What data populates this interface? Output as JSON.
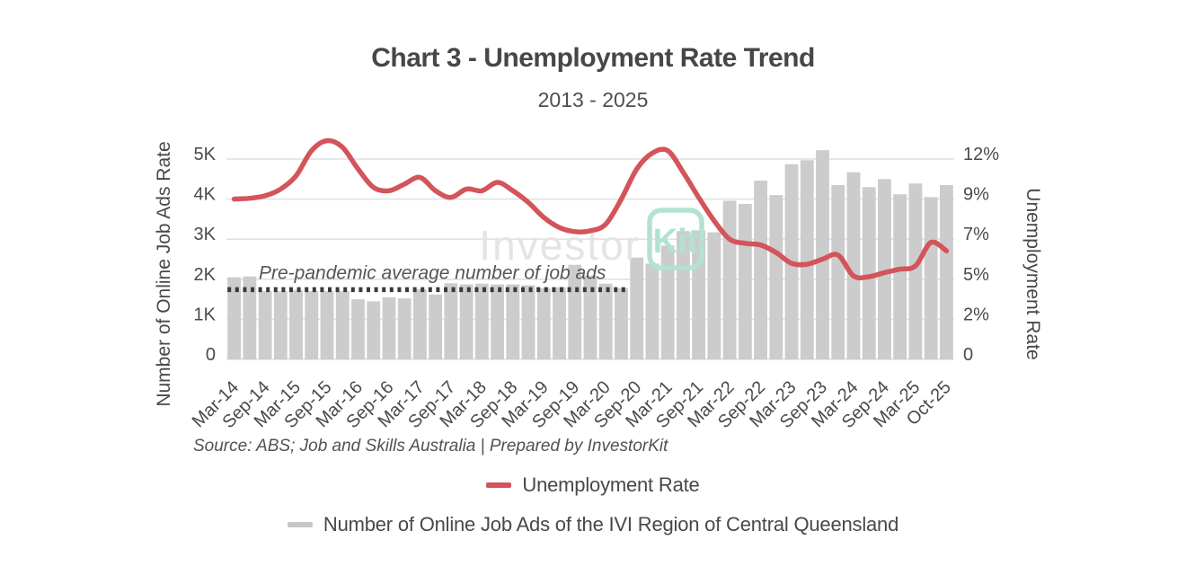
{
  "header": {
    "title": "Chart 3 - Unemployment Rate Trend",
    "subtitle": "2013 - 2025"
  },
  "source_note": "Source: ABS; Job and Skills Australia | Prepared by InvestorKit",
  "watermark": {
    "text_left": "Investor",
    "text_boxed": "Kit",
    "gray_color": "#e4e4e4",
    "teal_color": "#b2e2d2"
  },
  "legend": [
    {
      "label": "Unemployment Rate",
      "color": "#d3545a"
    },
    {
      "label": "Number of Online Job Ads of the IVI Region of Central Queensland",
      "color": "#c6c6c6"
    }
  ],
  "chart_data": {
    "type": "bar",
    "subtype": "combo-bar-plus-smoothed-line-dual-axis",
    "title": "Chart 3 - Unemployment Rate Trend",
    "subtitle": "2013 - 2025",
    "bars_frequency": "quarterly Mar-2014 to Oct-2025; x tick labels shown on every 2nd bar",
    "x_tick_labels": [
      "Mar-14",
      "Sep-14",
      "Mar-15",
      "Sep-15",
      "Mar-16",
      "Sep-16",
      "Mar-17",
      "Sep-17",
      "Mar-18",
      "Sep-18",
      "Mar-19",
      "Sep-19",
      "Mar-20",
      "Sep-20",
      "Mar-21",
      "Sep-21",
      "Mar-22",
      "Sep-22",
      "Mar-23",
      "Sep-23",
      "Mar-24",
      "Sep-24",
      "Mar-25",
      "Oct-25"
    ],
    "left_axis": {
      "title": "Number of Online Job Ads Rate",
      "tick_labels": [
        "0",
        "1K",
        "2K",
        "3K",
        "4K",
        "5K"
      ],
      "range": [
        0,
        5000
      ],
      "grid": true
    },
    "right_axis": {
      "title": "Unemployment Rate",
      "tick_labels": [
        "0",
        "2%",
        "5%",
        "7%",
        "9%",
        "12%"
      ],
      "range": [
        0,
        12
      ]
    },
    "series": [
      {
        "name": "Number of Online Job Ads of the IVI Region of Central Queensland",
        "type": "bar",
        "axis": "left",
        "color": "#cccccc",
        "values": [
          2050,
          2070,
          1700,
          1700,
          1730,
          1700,
          1700,
          1700,
          1500,
          1450,
          1550,
          1520,
          1750,
          1620,
          1900,
          1870,
          1890,
          1870,
          1870,
          1850,
          1780,
          1800,
          2360,
          2090,
          1890,
          1780,
          2540,
          2390,
          2840,
          3200,
          3220,
          3170,
          3960,
          3880,
          4460,
          4100,
          4870,
          4970,
          5220,
          4350,
          4670,
          4300,
          4500,
          4120,
          4390,
          4050,
          4350
        ]
      },
      {
        "name": "Unemployment Rate",
        "type": "line",
        "axis": "right",
        "color": "#d3545a",
        "smooth": true,
        "values": [
          9.6,
          9.65,
          9.8,
          10.2,
          11.0,
          12.5,
          13.1,
          12.7,
          11.4,
          10.3,
          10.1,
          10.5,
          10.9,
          10.1,
          9.7,
          10.2,
          10.1,
          10.6,
          10.1,
          9.4,
          8.5,
          7.9,
          7.65,
          7.7,
          8.1,
          9.6,
          11.4,
          12.35,
          12.5,
          11.2,
          9.7,
          8.3,
          7.2,
          6.95,
          6.85,
          6.4,
          5.75,
          5.7,
          6.0,
          6.25,
          5.0,
          4.95,
          5.2,
          5.4,
          5.6,
          7.0,
          6.5
        ]
      }
    ],
    "annotation": {
      "label": "Pre-pandemic average number of job ads",
      "value": 1740,
      "line_style": "dotted",
      "color": "#3a3a3a",
      "spans_bars": [
        1,
        26
      ]
    },
    "legend_position": "bottom-center",
    "colors": {
      "grid": "#e1e1e1",
      "tick_text": "#4a4a4a",
      "bar": "#cccccc",
      "line": "#d3545a"
    }
  }
}
